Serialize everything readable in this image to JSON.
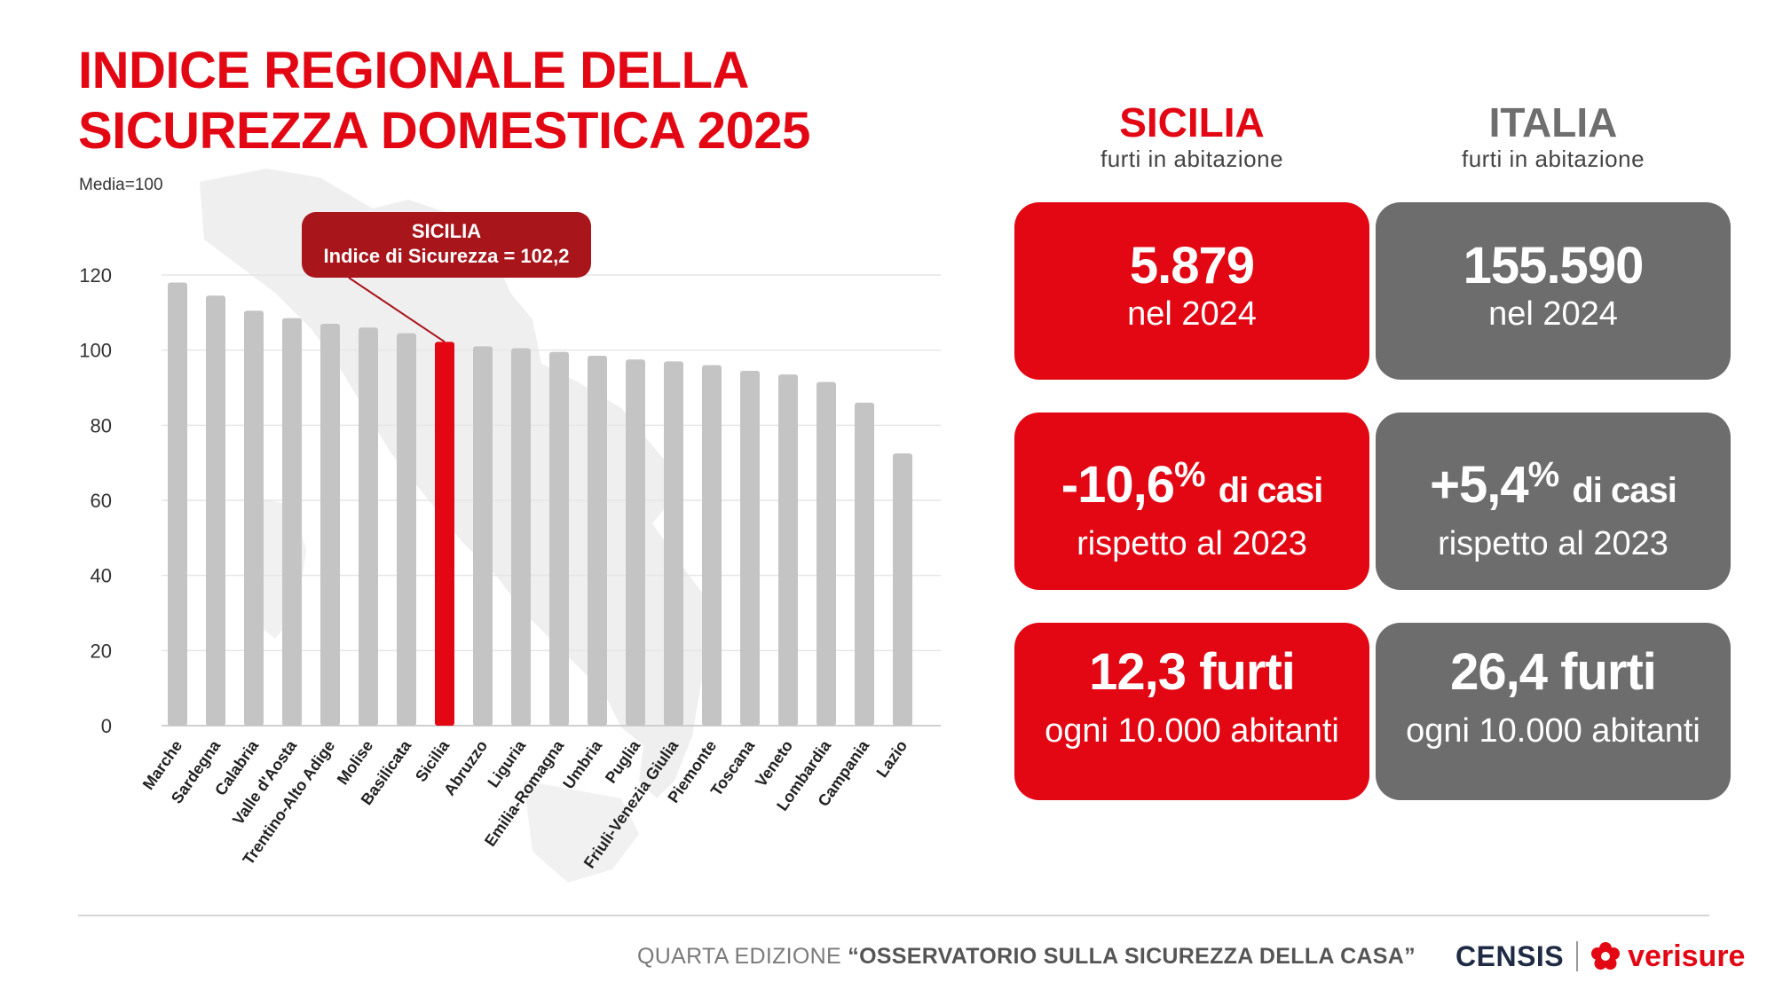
{
  "title_line1": "INDICE REGIONALE DELLA",
  "title_line2": "SICUREZZA DOMESTICA 2025",
  "note": "Media=100",
  "callout": {
    "line1": "SICILIA",
    "line2": "Indice di Sicurezza = 102,2"
  },
  "colors": {
    "red": "#e30613",
    "dark_red": "#a8151b",
    "grey": "#6d6d6d",
    "bar_grey": "#c4c4c4"
  },
  "chart_data": {
    "type": "bar",
    "title": "INDICE REGIONALE DELLA SICUREZZA DOMESTICA 2025",
    "xlabel": "",
    "ylabel": "",
    "ylim": [
      0,
      120
    ],
    "yticks": [
      0,
      20,
      40,
      60,
      80,
      100,
      120
    ],
    "grid": true,
    "highlight": "Sicilia",
    "categories": [
      "Marche",
      "Sardegna",
      "Calabria",
      "Valle d'Aosta",
      "Trentino-Alto Adige",
      "Molise",
      "Basilicata",
      "Sicilia",
      "Abruzzo",
      "Liguria",
      "Emilia-Romagna",
      "Umbria",
      "Puglia",
      "Friuli-Venezia Giulia",
      "Piemonte",
      "Toscana",
      "Veneto",
      "Lombardia",
      "Campania",
      "Lazio"
    ],
    "values": [
      118,
      114.5,
      110.5,
      108.5,
      107,
      106,
      104.5,
      102.2,
      101,
      100.5,
      99.5,
      98.5,
      97.5,
      97,
      96,
      94.5,
      93.5,
      91.5,
      86,
      72.5
    ]
  },
  "sicilia": {
    "name": "SICILIA",
    "desc": "furti in abitazione",
    "card1": {
      "big": "5.879",
      "small": "nel 2024"
    },
    "card2": {
      "pct": "-10,6",
      "pct_sign": "%",
      "word": "di casi",
      "small": "rispetto al 2023"
    },
    "card3": {
      "big": "12,3 furti",
      "small": "ogni 10.000 abitanti"
    }
  },
  "italia": {
    "name": "ITALIA",
    "desc": "furti in abitazione",
    "card1": {
      "big": "155.590",
      "small": "nel 2024"
    },
    "card2": {
      "pct": "+5,4",
      "pct_sign": "%",
      "word": "di casi",
      "small": "rispetto al 2023"
    },
    "card3": {
      "big": "26,4 furti",
      "small": "ogni 10.000 abitanti"
    }
  },
  "footer": {
    "edition_prefix": "QUARTA EDIZIONE",
    "edition_name": "“OSSERVATORIO SULLA SICUREZZA DELLA CASA”",
    "censis": "CENSIS",
    "verisure": "verisure"
  }
}
